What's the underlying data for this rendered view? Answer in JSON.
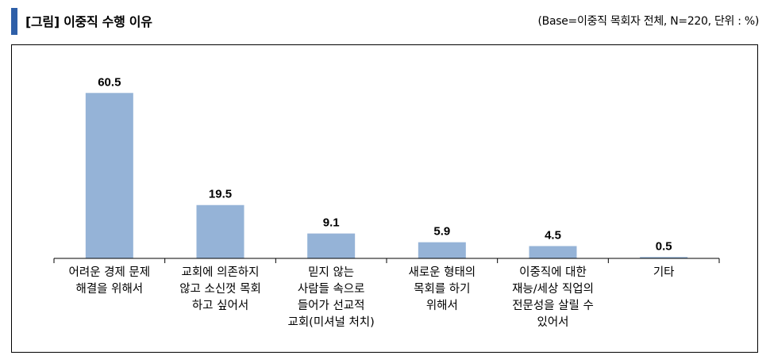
{
  "header": {
    "title": "[그림] 이중직 수행 이유",
    "note": "(Base=이중직 목회자 전체, N=220, 단위 : %)"
  },
  "colors": {
    "bar": "#95b3d7",
    "accent": "#2e5fa8",
    "axis": "#000000"
  },
  "chart_data": {
    "type": "bar",
    "title": "이중직 수행 이유",
    "xlabel": "",
    "ylabel": "",
    "ylim": [
      0,
      75
    ],
    "grid": false,
    "categories": [
      [
        "어려운 경제 문제",
        "해결을 위해서"
      ],
      [
        "교회에 의존하지",
        "않고 소신껏 목회",
        "하고 싶어서"
      ],
      [
        "믿지 않는",
        "사람들 속으로",
        "들어가 선교적",
        "교회(미셔널 처치)"
      ],
      [
        "새로운 형태의",
        "목회를 하기",
        "위해서"
      ],
      [
        "이중직에 대한",
        "재능/세상 직업의",
        "전문성을 살릴 수",
        "있어서"
      ],
      [
        "기타"
      ]
    ],
    "values": [
      60.5,
      19.5,
      9.1,
      5.9,
      4.5,
      0.5
    ],
    "value_labels": [
      "60.5",
      "19.5",
      "9.1",
      "5.9",
      "4.5",
      "0.5"
    ]
  }
}
